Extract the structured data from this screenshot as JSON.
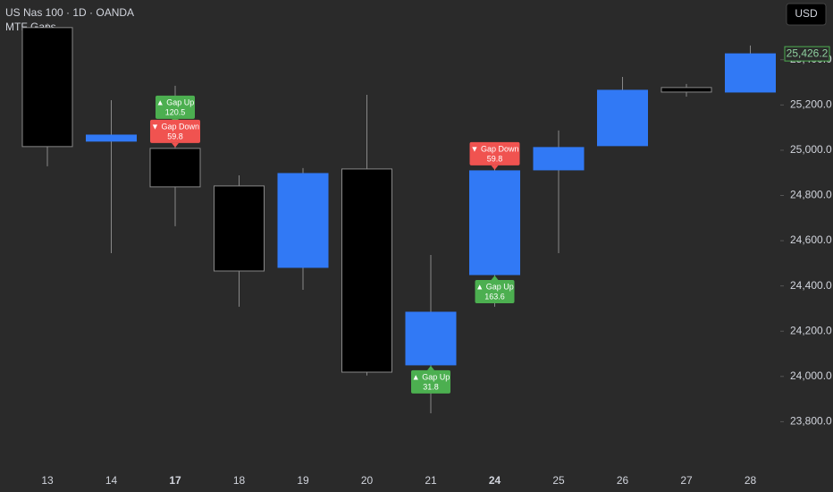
{
  "chart_data": {
    "type": "candlestick",
    "title": "US Nas 100 · 1D · OANDA",
    "subtitle": "MTF Gaps",
    "currency": "USD",
    "categories": [
      "13",
      "14",
      "17",
      "18",
      "19",
      "20",
      "21",
      "24",
      "25",
      "26",
      "27",
      "28"
    ],
    "bold_category_indices": [
      2,
      7
    ],
    "series": [
      {
        "open": [
          25542,
          25040,
          25008,
          24842,
          24482,
          24917,
          24051,
          24450,
          24913,
          25020,
          25277,
          25257
        ],
        "high": [
          25560,
          25221,
          25285,
          24889,
          24921,
          25245,
          24537,
          24941,
          25087,
          25324,
          25293,
          25463
        ],
        "low": [
          24929,
          24545,
          24664,
          24308,
          24383,
          24004,
          23837,
          24308,
          24545,
          25020,
          25237,
          25257
        ],
        "close": [
          25016,
          25067,
          24838,
          24466,
          24897,
          24019,
          24284,
          24909,
          25012,
          25265,
          25257,
          25426.2
        ]
      }
    ],
    "up_color": "#3179f5",
    "down_color": "#000000",
    "ylim": [
      23588,
      25664
    ],
    "yticks": [
      {
        "value": 23800,
        "label": "23,800.0"
      },
      {
        "value": 24000,
        "label": "24,000.0"
      },
      {
        "value": 24200,
        "label": "24,200.0"
      },
      {
        "value": 24400,
        "label": "24,400.0"
      },
      {
        "value": 24600,
        "label": "24,600.0"
      },
      {
        "value": 24800,
        "label": "24,800.0"
      },
      {
        "value": 25000,
        "label": "25,000.0"
      },
      {
        "value": 25200,
        "label": "25,200.0"
      },
      {
        "value": 25400,
        "label": "25,400.0"
      }
    ],
    "last_price": {
      "value": 25426.2,
      "label": "25,426.2"
    },
    "grid": false,
    "annotations": [
      {
        "index": 2,
        "text": "▲ Gap Up",
        "value": 120.5,
        "position": "above",
        "color": "#4caf50"
      },
      {
        "index": 2,
        "text": "▼ Gap Down",
        "value": 59.8,
        "position": "above",
        "color": "#f05350"
      },
      {
        "index": 6,
        "text": "▲ Gap Up",
        "value": 31.8,
        "position": "below",
        "color": "#4caf50"
      },
      {
        "index": 7,
        "text": "▼ Gap Down",
        "value": 59.8,
        "position": "above",
        "color": "#f05350"
      },
      {
        "index": 7,
        "text": "▲ Gap Up",
        "value": 163.6,
        "position": "below",
        "color": "#4caf50"
      }
    ]
  }
}
